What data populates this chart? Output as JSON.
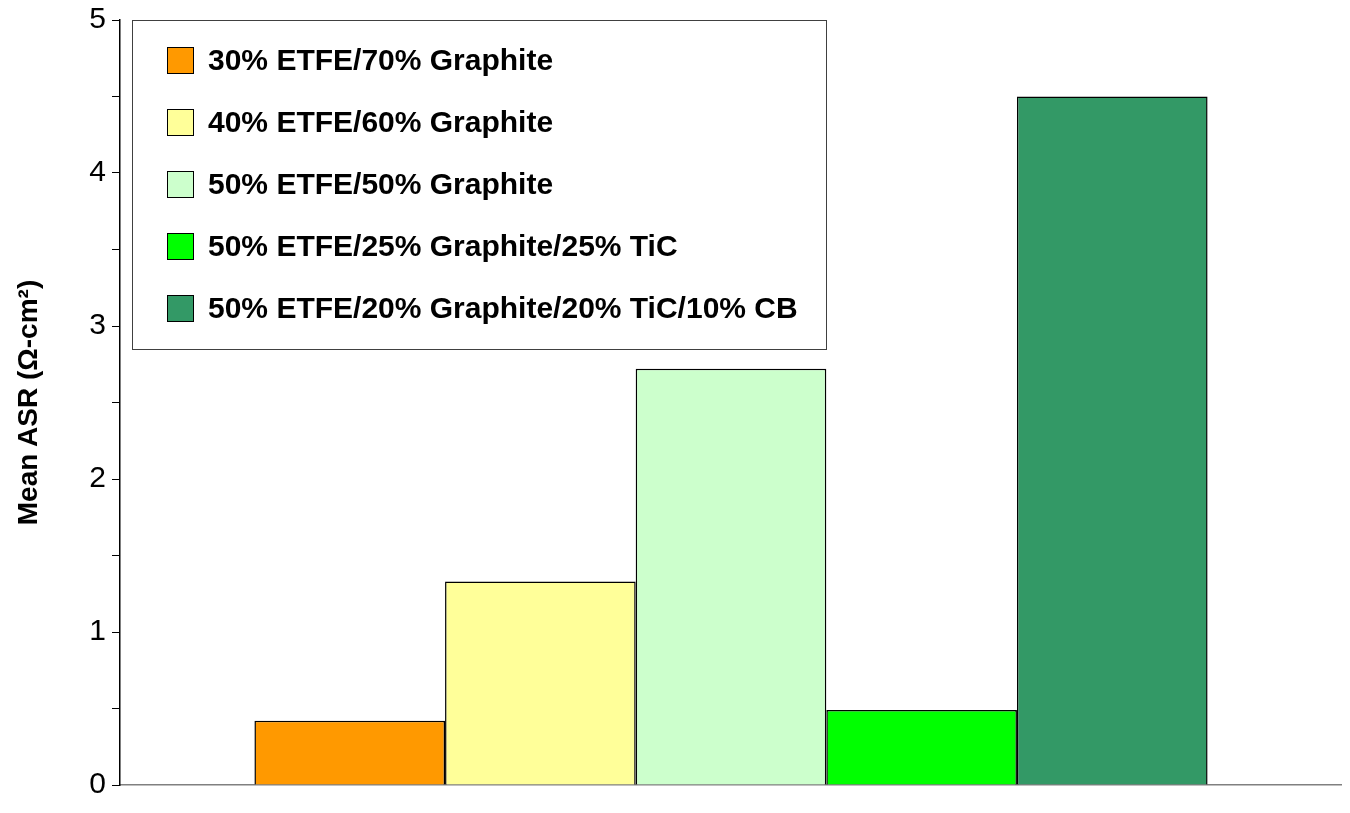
{
  "chart_data": {
    "type": "bar",
    "ylabel": "Mean ASR (Ω-cm²)",
    "categories": [
      null
    ],
    "series": [
      {
        "name": "30% ETFE/70% Graphite",
        "color": "#ff9900",
        "values": [
          0.42
        ]
      },
      {
        "name": "40% ETFE/60% Graphite",
        "color": "#ffff99",
        "values": [
          1.33
        ]
      },
      {
        "name": "50% ETFE/50% Graphite",
        "color": "#ccffcc",
        "values": [
          2.72
        ]
      },
      {
        "name": "50% ETFE/25% Graphite/25% TiC",
        "color": "#00ff00",
        "values": [
          0.49
        ]
      },
      {
        "name": "50% ETFE/20% Graphite/20% TiC/10% CB",
        "color": "#339966",
        "values": [
          4.5
        ]
      }
    ],
    "ylim": [
      0,
      5
    ],
    "yticks": [
      0,
      {
        "value": 0.5,
        "label": null
      },
      1,
      {
        "value": 1.5,
        "label": null
      },
      2,
      {
        "value": 2.5,
        "label": null
      },
      3,
      {
        "value": 3.5,
        "label": null
      },
      4,
      {
        "value": 4.5,
        "label": null
      },
      5
    ],
    "grid": false,
    "legend": "top left"
  }
}
